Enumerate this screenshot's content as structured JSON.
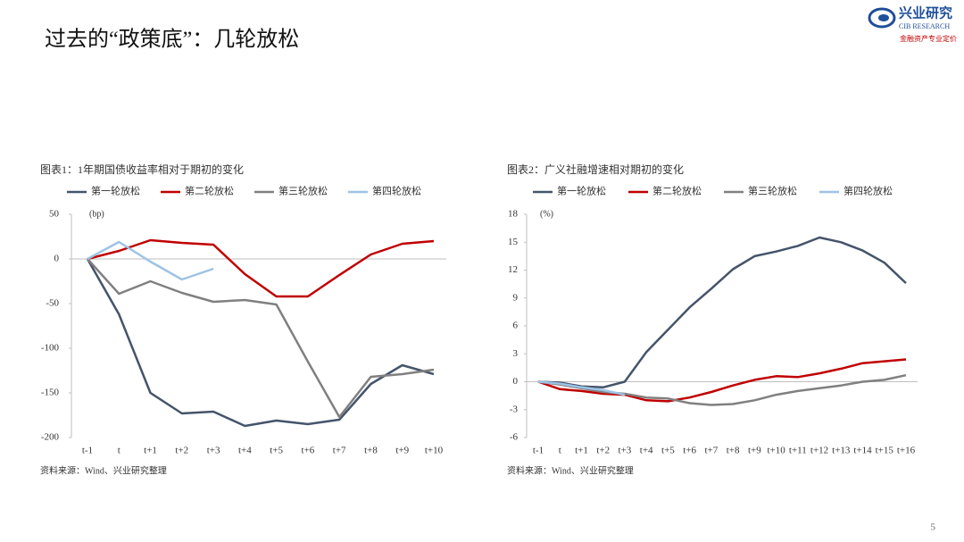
{
  "header": {
    "title": "过去的“政策底”：几轮放松",
    "logo_name": "兴业研究",
    "logo_en": "CIB RESEARCH",
    "logo_tagline": "金融资产专业定价"
  },
  "page_number": "5",
  "chart_data": [
    {
      "type": "line",
      "title": "图表1：1年期国债收益率相对于期初的变化",
      "y_unit": "(bp)",
      "source": "资料来源：Wind、兴业研究整理",
      "categories": [
        "t-1",
        "t",
        "t+1",
        "t+2",
        "t+3",
        "t+4",
        "t+5",
        "t+6",
        "t+7",
        "t+8",
        "t+9",
        "t+10"
      ],
      "ylim": [
        -200,
        50
      ],
      "yticks": [
        -200,
        -150,
        -100,
        -50,
        0,
        50
      ],
      "grid": false,
      "legend": "top",
      "series": [
        {
          "name": "第一轮放松",
          "color": "#44546a",
          "values": [
            0,
            -62,
            -150,
            -173,
            -171,
            -187,
            -181,
            -185,
            -180,
            -140,
            -119,
            -129
          ]
        },
        {
          "name": "第二轮放松",
          "color": "#c00000",
          "values": [
            0,
            9,
            21,
            18,
            16,
            -17,
            -42,
            -42,
            -18,
            5,
            17,
            20
          ]
        },
        {
          "name": "第三轮放松",
          "color": "#808080",
          "values": [
            0,
            -39,
            -25,
            -38,
            -48,
            -46,
            -51,
            -115,
            -177,
            -132,
            -129,
            -124
          ]
        },
        {
          "name": "第四轮放松",
          "color": "#9dc3e6",
          "values": [
            0,
            19,
            -3,
            -23,
            -11,
            null,
            null,
            null,
            null,
            null,
            null,
            null
          ]
        }
      ]
    },
    {
      "type": "line",
      "title": "图表2：广义社融增速相对期初的变化",
      "y_unit": "(%)",
      "source": "资料来源：Wind、兴业研究整理",
      "categories": [
        "t-1",
        "t",
        "t+1",
        "t+2",
        "t+3",
        "t+4",
        "t+5",
        "t+6",
        "t+7",
        "t+8",
        "t+9",
        "t+10",
        "t+11",
        "t+12",
        "t+13",
        "t+14",
        "t+15",
        "t+16"
      ],
      "ylim": [
        -6,
        18
      ],
      "yticks": [
        -6,
        -3,
        0,
        3,
        6,
        9,
        12,
        15,
        18
      ],
      "grid": false,
      "legend": "top",
      "series": [
        {
          "name": "第一轮放松",
          "color": "#44546a",
          "values": [
            0,
            -0.1,
            -0.5,
            -0.6,
            0,
            3.2,
            5.6,
            8,
            10,
            12.1,
            13.5,
            14,
            14.6,
            15.5,
            15,
            14.1,
            12.8,
            10.6
          ]
        },
        {
          "name": "第二轮放松",
          "color": "#c00000",
          "values": [
            0,
            -0.8,
            -1,
            -1.3,
            -1.4,
            -2,
            -2.1,
            -1.7,
            -1.1,
            -0.4,
            0.2,
            0.6,
            0.5,
            0.9,
            1.4,
            2,
            2.2,
            2.4
          ]
        },
        {
          "name": "第三轮放松",
          "color": "#808080",
          "values": [
            0,
            -0.3,
            -0.7,
            -1.1,
            -1.3,
            -1.7,
            -1.8,
            -2.3,
            -2.5,
            -2.4,
            -2,
            -1.4,
            -1,
            -0.7,
            -0.4,
            0,
            0.2,
            0.7
          ]
        },
        {
          "name": "第四轮放松",
          "color": "#9dc3e6",
          "values": [
            0,
            -0.2,
            -0.6,
            -0.9,
            -1.4,
            null,
            null,
            null,
            null,
            null,
            null,
            null,
            null,
            null,
            null,
            null,
            null,
            null
          ]
        }
      ]
    }
  ]
}
